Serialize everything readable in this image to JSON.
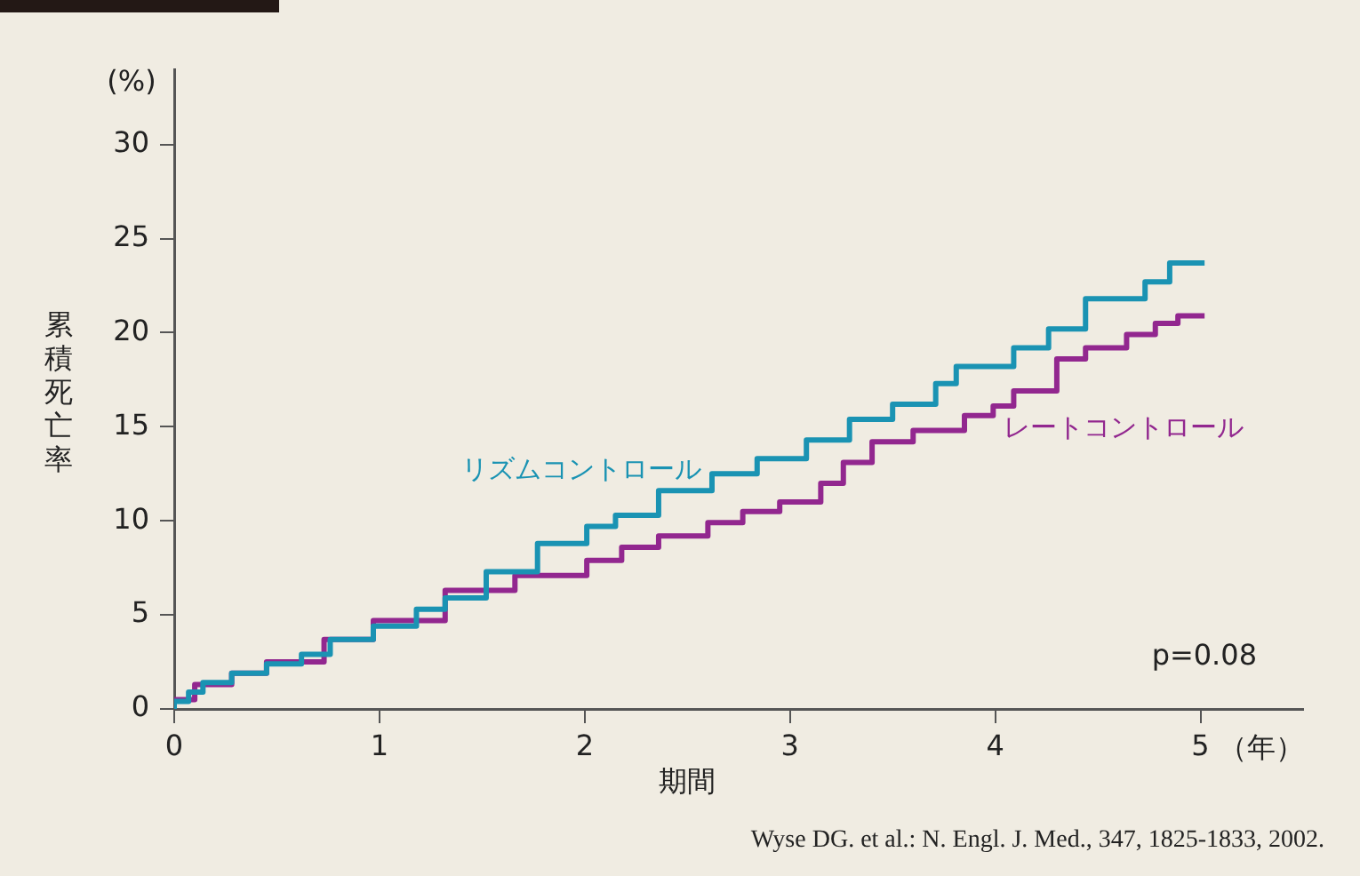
{
  "chart_data": {
    "type": "step",
    "xlabel": "期間",
    "ylabel": "累積死亡率",
    "annotations": [
      "(%)",
      "（年）",
      "p=0.08",
      "Wyse DG. et al.: N. Engl. J. Med., 347, 1825-1833, 2002."
    ],
    "xlim": [
      0,
      5.5
    ],
    "xticks": [
      0,
      1,
      2,
      3,
      4,
      5
    ],
    "ylim": [
      0,
      34
    ],
    "yticks": [
      0,
      5,
      10,
      15,
      20,
      25,
      30
    ],
    "grid": false,
    "legend": false,
    "marker": "none",
    "line_style": "solid",
    "series": [
      {
        "name": "リズムコントロール",
        "color": "#1a93b3",
        "x": [
          0,
          0.07,
          0.14,
          0.28,
          0.45,
          0.62,
          0.76,
          0.97,
          1.18,
          1.32,
          1.52,
          1.77,
          2.01,
          2.15,
          2.36,
          2.62,
          2.84,
          3.08,
          3.29,
          3.5,
          3.71,
          3.81,
          4.09,
          4.26,
          4.44,
          4.73,
          4.85,
          4.96,
          5.02
        ],
        "values": [
          0,
          0.4,
          0.9,
          1.4,
          1.9,
          2.4,
          2.9,
          3.7,
          4.4,
          5.3,
          5.9,
          7.3,
          8.8,
          9.7,
          10.3,
          11.6,
          12.5,
          13.3,
          14.3,
          15.4,
          16.2,
          17.3,
          18.2,
          19.2,
          20.2,
          21.8,
          22.7,
          23.7,
          23.7
        ]
      },
      {
        "name": "レートコントロール",
        "color": "#92278f",
        "x": [
          0,
          0.1,
          0.28,
          0.45,
          0.73,
          0.97,
          1.32,
          1.66,
          2.01,
          2.18,
          2.36,
          2.6,
          2.77,
          2.95,
          3.15,
          3.26,
          3.4,
          3.6,
          3.85,
          3.99,
          4.09,
          4.3,
          4.44,
          4.64,
          4.78,
          4.89,
          5.02
        ],
        "values": [
          0,
          0.5,
          1.3,
          1.9,
          2.5,
          3.7,
          4.7,
          6.3,
          7.1,
          7.9,
          8.6,
          9.2,
          9.9,
          10.5,
          11,
          12,
          13.1,
          14.2,
          14.8,
          15.6,
          16.1,
          16.9,
          18.6,
          19.2,
          19.9,
          20.5,
          20.9
        ]
      }
    ]
  }
}
